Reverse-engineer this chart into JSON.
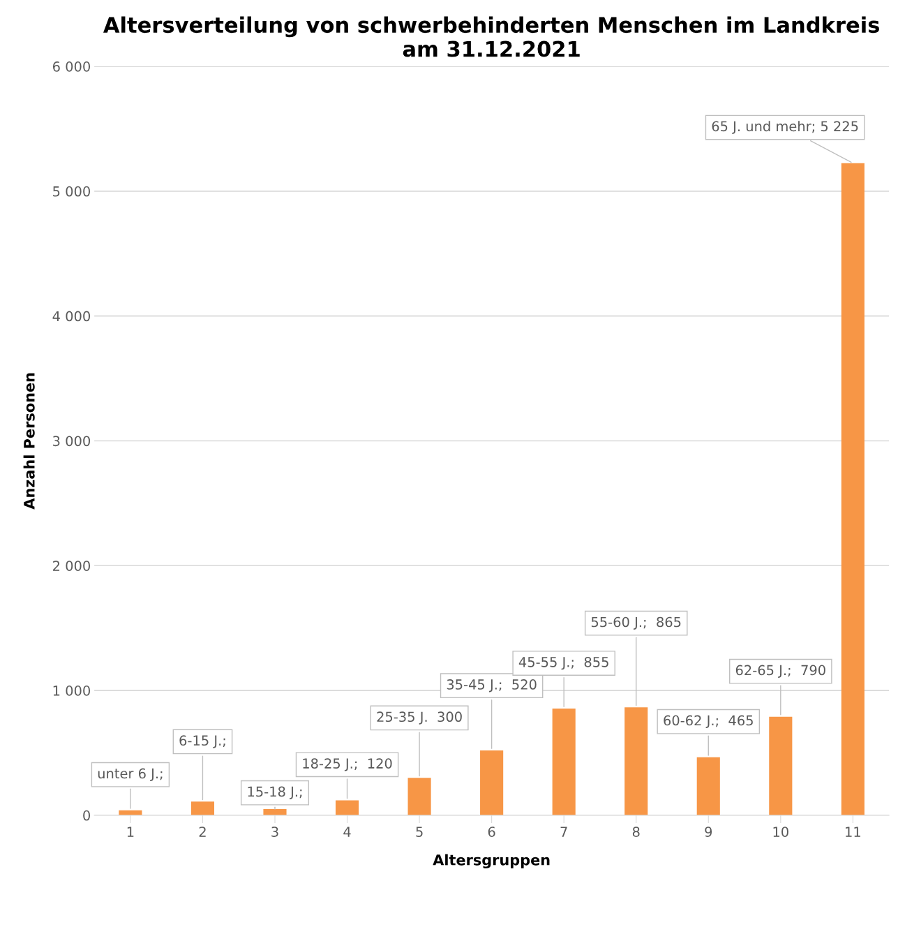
{
  "chart_data": {
    "type": "bar",
    "title": "Altersverteilung von schwerbehinderten Menschen im Landkreis\nam 31.12.2021",
    "xlabel": "Altersgruppen",
    "ylabel": "Anzahl Personen",
    "categories": [
      "1",
      "2",
      "3",
      "4",
      "5",
      "6",
      "7",
      "8",
      "9",
      "10",
      "11"
    ],
    "values": [
      40,
      110,
      50,
      120,
      300,
      520,
      855,
      865,
      465,
      790,
      5225
    ],
    "value_labels": [
      "unter 6 J.;",
      "6-15 J.;",
      "15-18 J.;",
      "18-25 J.;  120",
      "25-35 J.  300",
      "35-45 J.;  520",
      "45-55 J.;  855",
      "55-60 J.;  865",
      "60-62 J.;  465",
      "62-65 J.;  790",
      "65 J. und mehr; 5 225"
    ],
    "color": "#f79646",
    "ylim": [
      0,
      6000
    ],
    "yticks": [
      0,
      {
        "value": 1000,
        "label": "1 000"
      },
      {
        "value": 2000,
        "label": "2 000"
      },
      {
        "value": 3000,
        "label": "3 000"
      },
      {
        "value": 4000,
        "label": "4 000"
      },
      {
        "value": 5000,
        "label": "5 000"
      },
      {
        "value": 6000,
        "label": "6 000"
      }
    ],
    "grid": "y",
    "legend": false
  }
}
